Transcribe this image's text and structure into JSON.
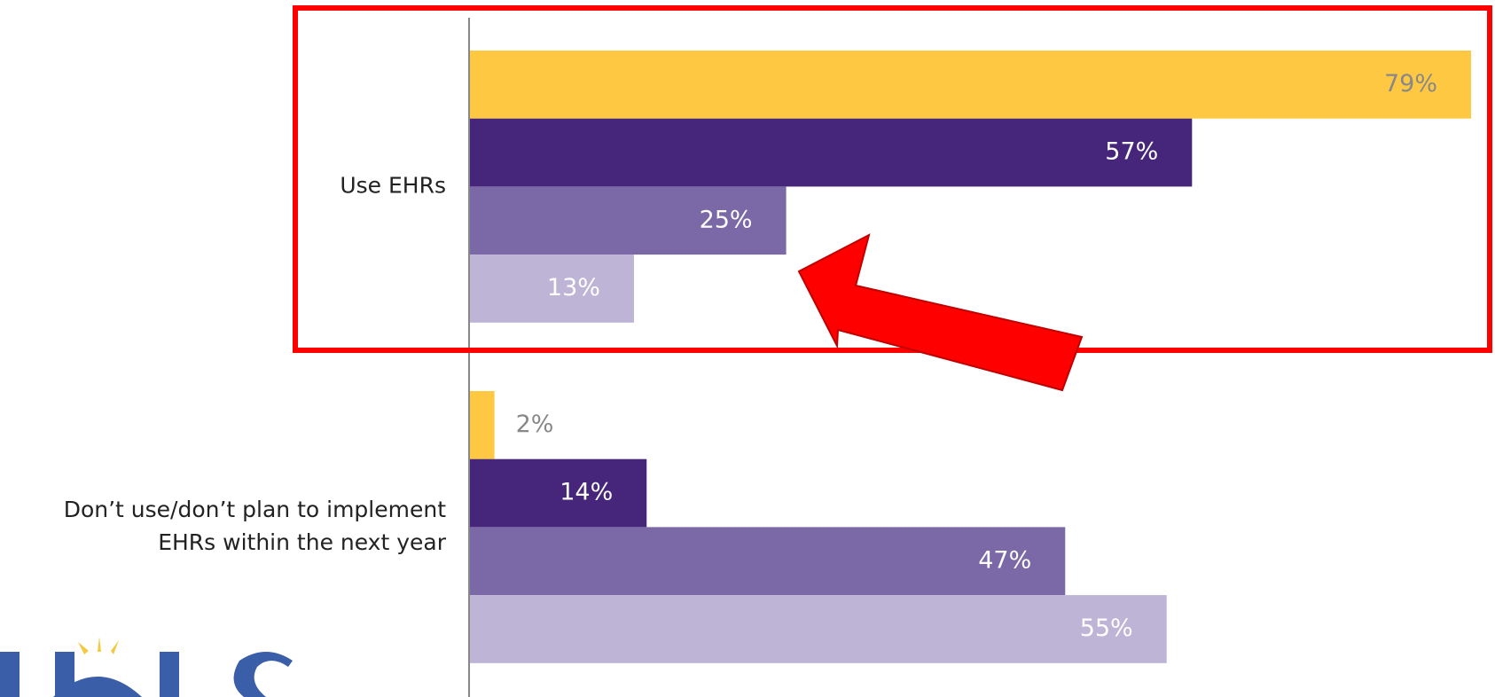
{
  "chart_data": {
    "type": "bar",
    "orientation": "horizontal",
    "categories": [
      "Use EHRs",
      "Don’t use/don’t plan to implement EHRs within the next year"
    ],
    "series": [
      {
        "color": "#fec842",
        "values": [
          79,
          2
        ],
        "value_labels": [
          "79%",
          "2%"
        ]
      },
      {
        "color": "#45267a",
        "values": [
          57,
          14
        ],
        "value_labels": [
          "57%",
          "14%"
        ]
      },
      {
        "color": "#7b68a6",
        "values": [
          25,
          47
        ],
        "value_labels": [
          "25%",
          "47%"
        ]
      },
      {
        "color": "#bdb4d6",
        "values": [
          13,
          55
        ],
        "value_labels": [
          "13%",
          "55%"
        ]
      }
    ],
    "xlim": [
      0,
      80
    ]
  }
}
